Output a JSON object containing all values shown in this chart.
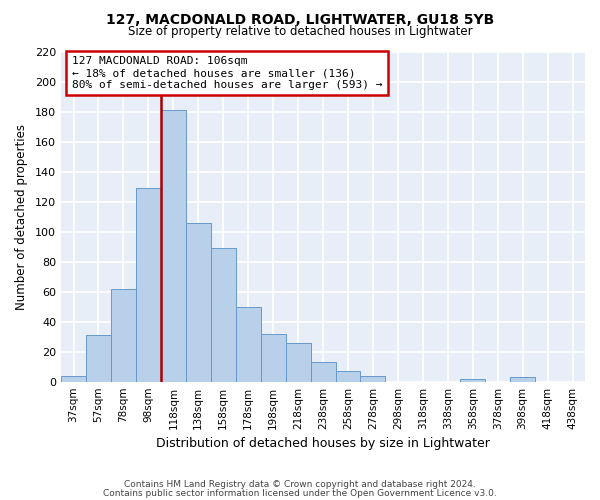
{
  "title": "127, MACDONALD ROAD, LIGHTWATER, GU18 5YB",
  "subtitle": "Size of property relative to detached houses in Lightwater",
  "xlabel": "Distribution of detached houses by size in Lightwater",
  "ylabel": "Number of detached properties",
  "bar_labels": [
    "37sqm",
    "57sqm",
    "78sqm",
    "98sqm",
    "118sqm",
    "138sqm",
    "158sqm",
    "178sqm",
    "198sqm",
    "218sqm",
    "238sqm",
    "258sqm",
    "278sqm",
    "298sqm",
    "318sqm",
    "338sqm",
    "358sqm",
    "378sqm",
    "398sqm",
    "418sqm",
    "438sqm"
  ],
  "bar_values": [
    4,
    31,
    62,
    129,
    181,
    106,
    89,
    50,
    32,
    26,
    13,
    7,
    4,
    0,
    0,
    0,
    2,
    0,
    3,
    0,
    0
  ],
  "bar_color": "#b8d0ea",
  "bar_edge_color": "#6699cc",
  "bg_color": "#e8eef8",
  "grid_color": "#ffffff",
  "vline_color": "#aa0000",
  "annotation_text": "127 MACDONALD ROAD: 106sqm\n← 18% of detached houses are smaller (136)\n80% of semi-detached houses are larger (593) →",
  "annotation_box_color": "#cc0000",
  "ylim": [
    0,
    220
  ],
  "yticks": [
    0,
    20,
    40,
    60,
    80,
    100,
    120,
    140,
    160,
    180,
    200,
    220
  ],
  "footer_line1": "Contains HM Land Registry data © Crown copyright and database right 2024.",
  "footer_line2": "Contains public sector information licensed under the Open Government Licence v3.0.",
  "vline_bar_index": 4,
  "fig_bg": "#ffffff"
}
